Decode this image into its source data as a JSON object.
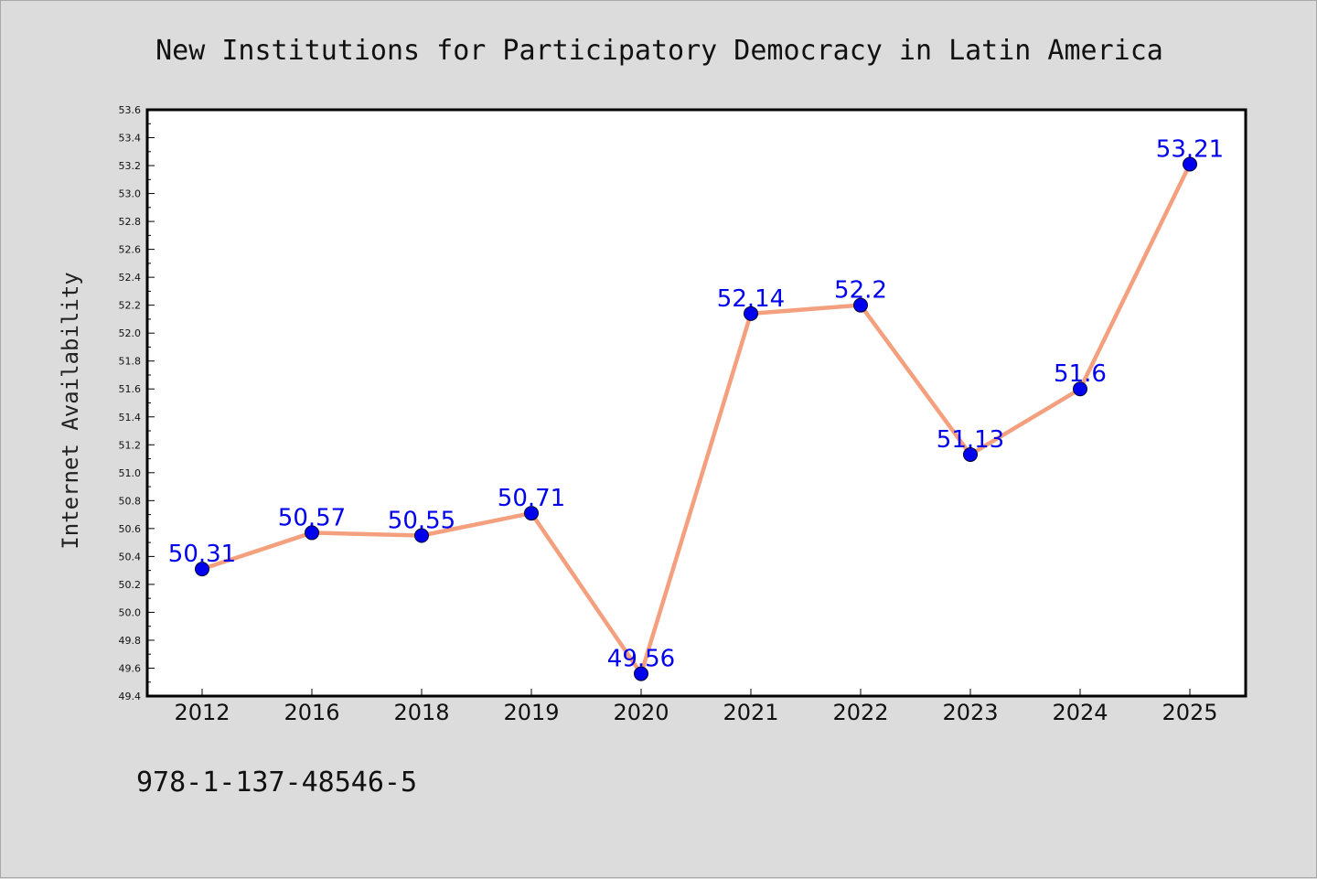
{
  "footer_text": "978-1-137-48546-5",
  "chart_data": {
    "type": "line",
    "title": "New Institutions for Participatory Democracy in Latin America",
    "xlabel": "",
    "ylabel": "Internet Availability",
    "categories": [
      "2012",
      "2016",
      "2018",
      "2019",
      "2020",
      "2021",
      "2022",
      "2023",
      "2024",
      "2025"
    ],
    "values": [
      50.31,
      50.57,
      50.55,
      50.71,
      49.56,
      52.14,
      52.2,
      51.13,
      51.6,
      53.21
    ],
    "data_labels": [
      "50.31",
      "50.57",
      "50.55",
      "50.71",
      "49.56",
      "52.14",
      "52.2",
      "51.13",
      "51.6",
      "53.21"
    ],
    "ylim": [
      49.4,
      53.6
    ],
    "yticks": [
      "49.4",
      "49.6",
      "49.8",
      "50.0",
      "50.2",
      "50.4",
      "50.6",
      "50.8",
      "51.0",
      "51.2",
      "51.4",
      "51.6",
      "51.8",
      "52.0",
      "52.2",
      "52.4",
      "52.6",
      "52.8",
      "53.0",
      "53.2",
      "53.4",
      "53.6"
    ],
    "grid": false,
    "legend": "none",
    "colors": {
      "line": "#f4a07e",
      "marker": "#0000ee",
      "label": "#0000ee",
      "plot_bg": "#ffffff",
      "page_bg": "#dcdcdc"
    }
  }
}
